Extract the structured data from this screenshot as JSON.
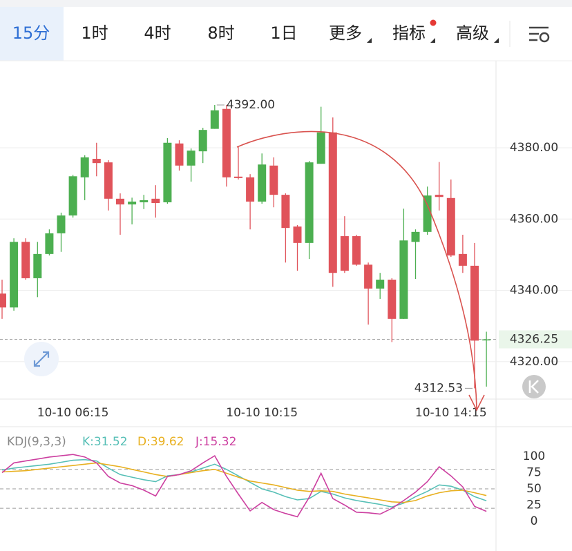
{
  "toolbar": {
    "tabs": [
      {
        "label": "15分",
        "active": true
      },
      {
        "label": "1时"
      },
      {
        "label": "4时"
      },
      {
        "label": "8时"
      },
      {
        "label": "1日"
      },
      {
        "label": "更多",
        "dropdown": true
      },
      {
        "label": "指标",
        "dropdown": true,
        "badge": true
      },
      {
        "label": "高级",
        "dropdown": true
      }
    ]
  },
  "chart_data": [
    {
      "type": "candlestick",
      "categories": [
        null,
        null,
        null,
        null,
        null,
        null,
        "10-10 06:15",
        null,
        null,
        null,
        null,
        null,
        null,
        null,
        null,
        null,
        null,
        null,
        null,
        null,
        null,
        null,
        "10-10 10:15",
        null,
        null,
        null,
        null,
        null,
        null,
        null,
        null,
        null,
        null,
        null,
        null,
        null,
        null,
        null,
        "10-10 14:15",
        null,
        null,
        null
      ],
      "open": [
        4339.1,
        4335.2,
        4353.6,
        4343.4,
        4350.2,
        4356.0,
        4361.0,
        4371.7,
        4376.9,
        4375.9,
        4365.7,
        4364.1,
        4364.7,
        4365.7,
        4364.7,
        4381.2,
        4375.0,
        4379.0,
        4385.3,
        4390.9,
        4371.9,
        4371.7,
        4364.9,
        4375.0,
        4366.8,
        4357.9,
        4353.3,
        4375.5,
        4384.3,
        4355.2,
        4355.2,
        4347.2,
        4340.5,
        4343.0,
        4332.0,
        4353.6,
        4356.4,
        4366.8,
        4365.9,
        4350.2,
        4346.9,
        4326.1
      ],
      "high": [
        4343.0,
        4354.6,
        4354.6,
        4353.6,
        4357.1,
        4361.8,
        4372.4,
        4377.9,
        4381.4,
        4376.5,
        4367.2,
        4366.0,
        4366.8,
        4369.5,
        4382.7,
        4382.1,
        4379.8,
        4385.6,
        4392.0,
        4392.0,
        4380.2,
        4372.6,
        4378.4,
        4377.3,
        4367.2,
        4358.3,
        4376.3,
        4391.5,
        4388.5,
        4360.8,
        4355.6,
        4347.8,
        4344.9,
        4343.4,
        4362.9,
        4357.1,
        4369.1,
        4376.0,
        4371.1,
        4355.6,
        4353.3,
        4328.4
      ],
      "low": [
        4332.0,
        4334.3,
        4343.0,
        4338.1,
        4349.8,
        4350.8,
        4360.4,
        4365.3,
        4372.0,
        4362.4,
        4355.6,
        4358.5,
        4362.8,
        4360.4,
        4364.3,
        4373.6,
        4370.5,
        4375.7,
        4385.3,
        4369.1,
        4371.1,
        4357.1,
        4364.3,
        4363.3,
        4347.8,
        4345.5,
        4348.8,
        4375.5,
        4341.0,
        4344.9,
        4346.9,
        4330.4,
        4337.6,
        4325.5,
        4332.0,
        4343.2,
        4355.6,
        4362.4,
        4349.4,
        4344.9,
        4312.53,
        4313.0
      ],
      "close": [
        4335.2,
        4353.6,
        4343.4,
        4350.2,
        4356.0,
        4361.0,
        4372.0,
        4377.3,
        4375.7,
        4365.7,
        4364.1,
        4364.9,
        4365.3,
        4364.5,
        4381.4,
        4375.0,
        4379.2,
        4385.0,
        4390.5,
        4371.7,
        4371.5,
        4364.9,
        4375.3,
        4366.8,
        4357.5,
        4353.3,
        4375.9,
        4384.3,
        4344.9,
        4345.5,
        4347.2,
        4340.5,
        4343.0,
        4332.0,
        4354.0,
        4356.4,
        4366.6,
        4366.2,
        4349.8,
        4346.9,
        4325.9,
        4326.25
      ],
      "up_color": "#4caf50",
      "down_color": "#e0535a",
      "ylim": [
        4309.5,
        4404.4
      ],
      "yticks": [
        {
          "value": 4320,
          "label": "4320.00"
        },
        {
          "value": 4340,
          "label": "4340.00"
        },
        {
          "value": 4360,
          "label": "4360.00"
        },
        {
          "value": 4380,
          "label": "4380.00"
        }
      ],
      "grid": true,
      "markers": [
        {
          "value": 4392,
          "label": "4392.00"
        },
        {
          "value": 4312.53,
          "label": "4312.53"
        }
      ],
      "last_price": {
        "value": 4326.25,
        "label": "4326.25",
        "color": "#4caf50"
      }
    },
    {
      "type": "line",
      "title": "KDJ(9,3,3)",
      "series": [
        {
          "name": "K:31.52",
          "color": "#56bfb6",
          "values": [
            79,
            82,
            84,
            86,
            88,
            91,
            94,
            95,
            93,
            82,
            72,
            68,
            64,
            61,
            70,
            72,
            76,
            82,
            88,
            80,
            70,
            60,
            50,
            45,
            38,
            33,
            35,
            46,
            42,
            36,
            32,
            29,
            26,
            22,
            28,
            38,
            46,
            56,
            54,
            48,
            38,
            31.52
          ]
        },
        {
          "name": "D:39.62",
          "color": "#e8b020",
          "values": [
            76,
            77,
            78,
            80,
            82,
            84,
            86,
            88,
            90,
            87,
            84,
            80,
            76,
            72,
            69,
            72,
            75,
            78,
            80,
            74,
            68,
            62,
            59,
            56,
            52,
            48,
            46,
            47,
            46,
            42,
            39,
            36,
            33,
            30,
            29,
            32,
            39,
            44,
            47,
            48,
            44,
            39.62
          ]
        },
        {
          "name": "J:15.32",
          "color": "#cc3fa0",
          "values": [
            75,
            90,
            93,
            96,
            99,
            101,
            103,
            99,
            90,
            69,
            59,
            55,
            48,
            39,
            69,
            72,
            78,
            90,
            101,
            69,
            42,
            16,
            29,
            18,
            12,
            7,
            37,
            74,
            35,
            25,
            14,
            13,
            11,
            20,
            32,
            45,
            61,
            84,
            70,
            53,
            23,
            15.32
          ]
        }
      ],
      "ylim": [
        -16,
        111.7
      ],
      "yticks": [
        0,
        25,
        50,
        75,
        100
      ],
      "levels": [
        20,
        50,
        80
      ]
    }
  ]
}
